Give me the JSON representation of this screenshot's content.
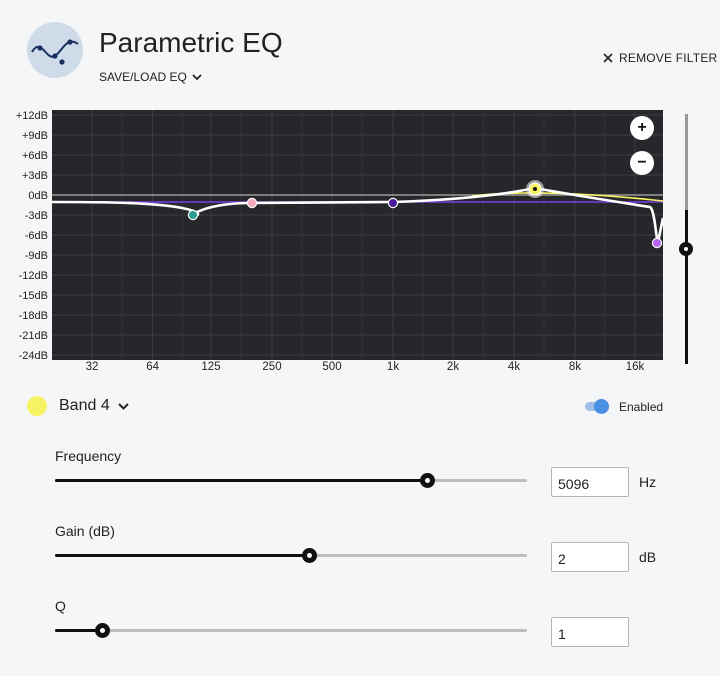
{
  "header": {
    "title": "Parametric EQ",
    "save_load": "SAVE/LOAD EQ",
    "remove_filter": "REMOVE FILTER"
  },
  "graph": {
    "y_ticks": [
      "+12dB",
      "+9dB",
      "+6dB",
      "+3dB",
      "0dB",
      "-3dB",
      "-6dB",
      "-9dB",
      "-12dB",
      "-15dB",
      "-18dB",
      "-21dB",
      "-24dB"
    ],
    "x_ticks": [
      "32",
      "64",
      "125",
      "250",
      "500",
      "1k",
      "2k",
      "4k",
      "8k",
      "16k"
    ],
    "zoom_in": "+",
    "zoom_out": "−",
    "colors": {
      "background": "#26272b",
      "curve": "#ffffff",
      "grid": "#3b3c41",
      "zero_line": "#9a9a9a"
    },
    "bands": [
      {
        "color": "#2a9d8f",
        "freq_hz": 100,
        "gain_db": -3
      },
      {
        "color": "#f4a9b8",
        "freq_hz": 180,
        "gain_db": -1
      },
      {
        "color": "#4b1a9c",
        "freq_hz": 1000,
        "gain_db": -1
      },
      {
        "color": "#f7f463",
        "freq_hz": 5096,
        "gain_db": 2
      },
      {
        "color": "#b565f2",
        "freq_hz": 19000,
        "gain_db": -6
      }
    ]
  },
  "band_selector": {
    "label": "Band 4",
    "color": "#f7f463"
  },
  "enabled_toggle": {
    "label": "Enabled",
    "on": true
  },
  "params": {
    "frequency": {
      "label": "Frequency",
      "value": "5096",
      "unit": "Hz",
      "slider_fraction": 0.79
    },
    "gain": {
      "label": "Gain (dB)",
      "value": "2",
      "unit": "dB",
      "slider_fraction": 0.54
    },
    "q": {
      "label": "Q",
      "value": "1",
      "unit": "",
      "slider_fraction": 0.1
    }
  }
}
